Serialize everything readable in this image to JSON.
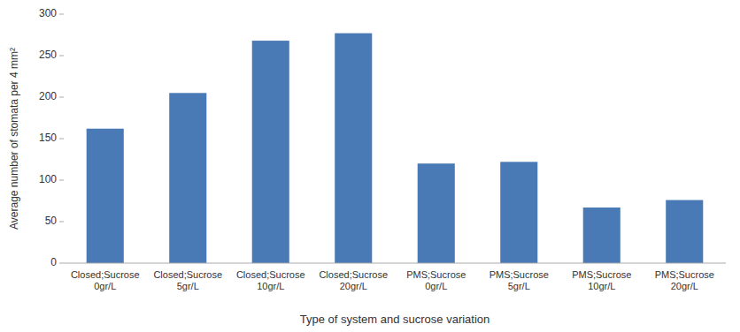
{
  "chart_data": {
    "type": "bar",
    "categories": [
      "Closed;Sucrose\n0gr/L",
      "Closed;Sucrose\n5gr/L",
      "Closed;Sucrose\n10gr/L",
      "Closed;Sucrose\n20gr/L",
      "PMS;Sucrose\n0gr/L",
      "PMS;Sucrose\n5gr/L",
      "PMS;Sucrose\n10gr/L",
      "PMS;Sucrose\n20gr/L"
    ],
    "values": [
      162,
      205,
      268,
      277,
      120,
      122,
      67,
      76
    ],
    "color": "#4a7ab5",
    "xlabel": "Type of system and sucrose variation",
    "ylabel": "Average number of stomata per 4 mm²",
    "ylim": [
      0,
      300
    ],
    "yticks": [
      0,
      50,
      100,
      150,
      200,
      250,
      300
    ],
    "grid": false
  }
}
